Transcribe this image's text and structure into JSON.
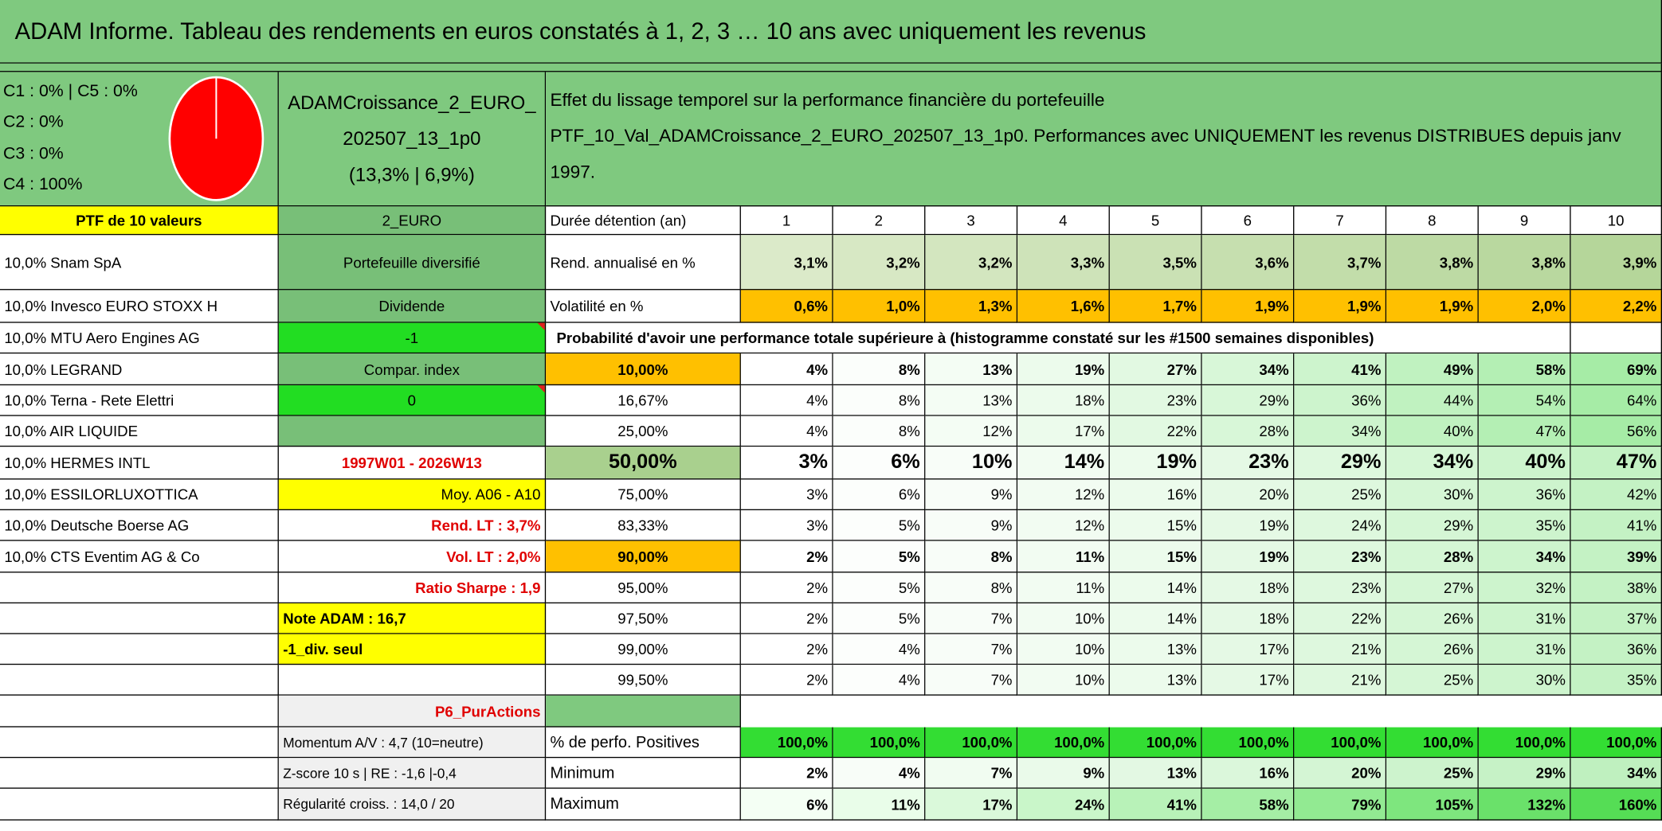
{
  "title": "ADAM Informe. Tableau des rendements en euros constatés à 1, 2, 3 … 10 ans avec uniquement les revenus",
  "composition": [
    "C1 : 0% | C5 : 0%",
    "C2 : 0%",
    "C3 : 0%",
    "C4 : 100%"
  ],
  "portfolio": {
    "name": "ADAMCroissance_2_EURO_202507_13_1p0",
    "metrics": "(13,3% | 6,9%)"
  },
  "description": {
    "line1": "Effet du lissage temporel sur la performance financière du portefeuille",
    "line2": "PTF_10_Val_ADAMCroissance_2_EURO_202507_13_1p0. Performances avec UNIQUEMENT les revenus DISTRIBUES depuis janv 1997."
  },
  "left_column": {
    "header": "PTF de 10 valeurs",
    "holdings": [
      "10,0% Snam SpA",
      "10,0% Invesco EURO STOXX H",
      "10,0% MTU Aero Engines AG",
      "10,0% LEGRAND",
      "10,0% Terna - Rete Elettri",
      "10,0% AIR LIQUIDE",
      "10,0% HERMES INTL",
      "10,0% ESSILORLUXOTTICA",
      "10,0% Deutsche Boerse AG",
      "10,0% CTS Eventim AG & Co"
    ]
  },
  "middle_column": {
    "currency": "2_EURO",
    "type": "Portefeuille diversifié",
    "category": "Dividende",
    "flag1": "-1",
    "compare_label": "Compar. index",
    "flag2": "0",
    "period": "1997W01 - 2026W13",
    "average": "Moy. A06 - A10",
    "lt_return": "Rend. LT : 3,7%",
    "lt_volatility": "Vol. LT : 2,0%",
    "sharpe": "Ratio Sharpe : 1,9",
    "note": "Note ADAM : 16,7",
    "mode": "-1_div. seul",
    "universe": "P6_PurActions",
    "momentum": "Momentum A/V : 4,7 (10=neutre)",
    "zscore": "Z-score 10 s | RE : -1,6 |-0,4",
    "regularity": "Régularité croiss. : 14,0 / 20"
  },
  "table": {
    "duration_label": "Durée détention (an)",
    "years": [
      1,
      2,
      3,
      4,
      5,
      6,
      7,
      8,
      9,
      10
    ],
    "stats": [
      {
        "label": "Rend. annualisé en %",
        "values": [
          "3,1%",
          "3,2%",
          "3,2%",
          "3,3%",
          "3,5%",
          "3,6%",
          "3,7%",
          "3,8%",
          "3,8%",
          "3,9%"
        ]
      },
      {
        "label": "Volatilité en %",
        "values": [
          "0,6%",
          "1,0%",
          "1,3%",
          "1,6%",
          "1,7%",
          "1,9%",
          "1,9%",
          "1,9%",
          "2,0%",
          "2,2%"
        ]
      }
    ],
    "probability_title": "Probabilité d'avoir une performance totale supérieure à (histogramme constaté sur les #1500 semaines disponibles)",
    "quantiles": [
      {
        "label": "10,00%",
        "values": [
          "4%",
          "8%",
          "13%",
          "19%",
          "27%",
          "34%",
          "41%",
          "49%",
          "58%",
          "69%"
        ]
      },
      {
        "label": "16,67%",
        "values": [
          "4%",
          "8%",
          "13%",
          "18%",
          "23%",
          "29%",
          "36%",
          "44%",
          "54%",
          "64%"
        ]
      },
      {
        "label": "25,00%",
        "values": [
          "4%",
          "8%",
          "12%",
          "17%",
          "22%",
          "28%",
          "34%",
          "40%",
          "47%",
          "56%"
        ]
      },
      {
        "label": "50,00%",
        "values": [
          "3%",
          "6%",
          "10%",
          "14%",
          "19%",
          "23%",
          "29%",
          "34%",
          "40%",
          "47%"
        ]
      },
      {
        "label": "75,00%",
        "values": [
          "3%",
          "6%",
          "9%",
          "12%",
          "16%",
          "20%",
          "25%",
          "30%",
          "36%",
          "42%"
        ]
      },
      {
        "label": "83,33%",
        "values": [
          "3%",
          "5%",
          "9%",
          "12%",
          "15%",
          "19%",
          "24%",
          "29%",
          "35%",
          "41%"
        ]
      },
      {
        "label": "90,00%",
        "values": [
          "2%",
          "5%",
          "8%",
          "11%",
          "15%",
          "19%",
          "23%",
          "28%",
          "34%",
          "39%"
        ]
      },
      {
        "label": "95,00%",
        "values": [
          "2%",
          "5%",
          "8%",
          "11%",
          "14%",
          "18%",
          "23%",
          "27%",
          "32%",
          "38%"
        ]
      },
      {
        "label": "97,50%",
        "values": [
          "2%",
          "5%",
          "7%",
          "10%",
          "14%",
          "18%",
          "22%",
          "26%",
          "31%",
          "37%"
        ]
      },
      {
        "label": "99,00%",
        "values": [
          "2%",
          "4%",
          "7%",
          "10%",
          "13%",
          "17%",
          "21%",
          "26%",
          "31%",
          "36%"
        ]
      },
      {
        "label": "99,50%",
        "values": [
          "2%",
          "4%",
          "7%",
          "10%",
          "13%",
          "17%",
          "21%",
          "25%",
          "30%",
          "35%"
        ]
      }
    ],
    "summary": [
      {
        "label": "% de perfo. Positives",
        "values": [
          "100,0%",
          "100,0%",
          "100,0%",
          "100,0%",
          "100,0%",
          "100,0%",
          "100,0%",
          "100,0%",
          "100,0%",
          "100,0%"
        ]
      },
      {
        "label": "Minimum",
        "values": [
          "2%",
          "4%",
          "7%",
          "9%",
          "13%",
          "16%",
          "20%",
          "25%",
          "29%",
          "34%"
        ]
      },
      {
        "label": "Maximum",
        "values": [
          "6%",
          "11%",
          "17%",
          "24%",
          "41%",
          "58%",
          "79%",
          "105%",
          "132%",
          "160%"
        ]
      }
    ]
  }
}
